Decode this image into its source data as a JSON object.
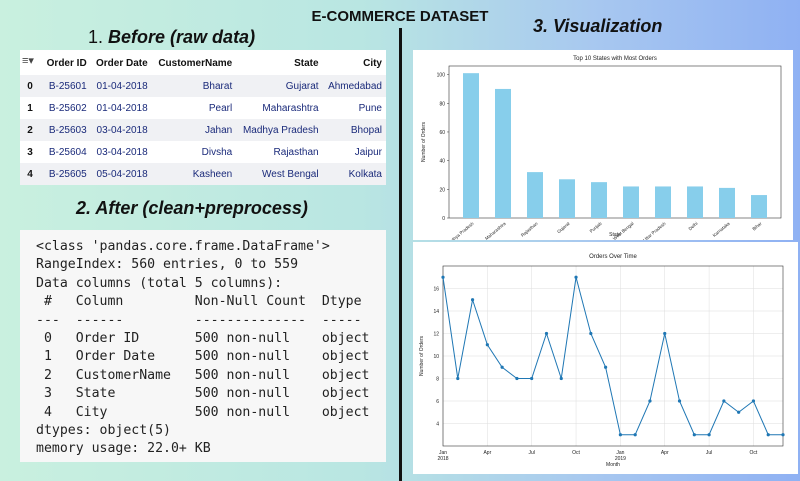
{
  "title": "E-COMMERCE DATASET",
  "section1": {
    "num": "1.",
    "label": "Before (raw data)"
  },
  "section2": {
    "label": "2. After  (clean+preprocess)"
  },
  "section3": {
    "label": "3. Visualization"
  },
  "raw_table": {
    "filter_icon": "filter-icon",
    "headers": [
      "",
      "Order ID",
      "Order Date",
      "CustomerName",
      "State",
      "City"
    ],
    "rows": [
      [
        "0",
        "B-25601",
        "01-04-2018",
        "Bharat",
        "Gujarat",
        "Ahmedabad"
      ],
      [
        "1",
        "B-25602",
        "01-04-2018",
        "Pearl",
        "Maharashtra",
        "Pune"
      ],
      [
        "2",
        "B-25603",
        "03-04-2018",
        "Jahan",
        "Madhya Pradesh",
        "Bhopal"
      ],
      [
        "3",
        "B-25604",
        "03-04-2018",
        "Divsha",
        "Rajasthan",
        "Jaipur"
      ],
      [
        "4",
        "B-25605",
        "05-04-2018",
        "Kasheen",
        "West Bengal",
        "Kolkata"
      ]
    ]
  },
  "info_lines": [
    "<class 'pandas.core.frame.DataFrame'>",
    "RangeIndex: 560 entries, 0 to 559",
    "Data columns (total 5 columns):",
    " #   Column         Non-Null Count  Dtype ",
    "---  ------         --------------  ----- ",
    " 0   Order ID       500 non-null    object",
    " 1   Order Date     500 non-null    object",
    " 2   CustomerName   500 non-null    object",
    " 3   State          500 non-null    object",
    " 4   City           500 non-null    object",
    "dtypes: object(5)",
    "memory usage: 22.0+ KB"
  ],
  "chart_data": [
    {
      "type": "bar",
      "title": "Top 10 States with Most Orders",
      "xlabel": "State",
      "ylabel": "Number of Orders",
      "categories": [
        "Madhya Pradesh",
        "Maharashtra",
        "Rajasthan",
        "Gujarat",
        "Punjab",
        "West Bengal",
        "Uttar Pradesh",
        "Delhi",
        "Karnataka",
        "Bihar"
      ],
      "values": [
        101,
        90,
        32,
        27,
        25,
        22,
        22,
        22,
        21,
        16
      ],
      "yticks": [
        0,
        20,
        40,
        60,
        80,
        100
      ],
      "ylim": [
        0,
        106
      ],
      "color": "#87ceeb"
    },
    {
      "type": "line",
      "title": "Orders Over Time",
      "xlabel": "Month",
      "ylabel": "Number of Orders",
      "x": [
        "2018-01",
        "2018-02",
        "2018-03",
        "2018-04",
        "2018-05",
        "2018-06",
        "2018-07",
        "2018-08",
        "2018-09",
        "2018-10",
        "2018-11",
        "2018-12",
        "2019-01",
        "2019-02",
        "2019-03",
        "2019-04",
        "2019-05",
        "2019-06",
        "2019-07",
        "2019-08",
        "2019-09",
        "2019-10",
        "2019-11",
        "2019-12"
      ],
      "values": [
        17,
        8,
        15,
        11,
        9,
        8,
        8,
        12,
        8,
        17,
        12,
        9,
        3,
        3,
        6,
        12,
        6,
        3,
        3,
        6,
        5,
        6,
        3,
        3
      ],
      "yticks": [
        4,
        6,
        8,
        10,
        12,
        14,
        16
      ],
      "ylim": [
        2,
        18
      ],
      "xtick_labels": [
        {
          "i": 0,
          "label": "Jan",
          "sub": "2018"
        },
        {
          "i": 3,
          "label": "Apr",
          "sub": ""
        },
        {
          "i": 6,
          "label": "Jul",
          "sub": ""
        },
        {
          "i": 9,
          "label": "Oct",
          "sub": ""
        },
        {
          "i": 12,
          "label": "Jan",
          "sub": "2019"
        },
        {
          "i": 15,
          "label": "Apr",
          "sub": ""
        },
        {
          "i": 18,
          "label": "Jul",
          "sub": ""
        },
        {
          "i": 21,
          "label": "Oct",
          "sub": ""
        }
      ],
      "grid": true,
      "color": "#1f77b4"
    }
  ]
}
